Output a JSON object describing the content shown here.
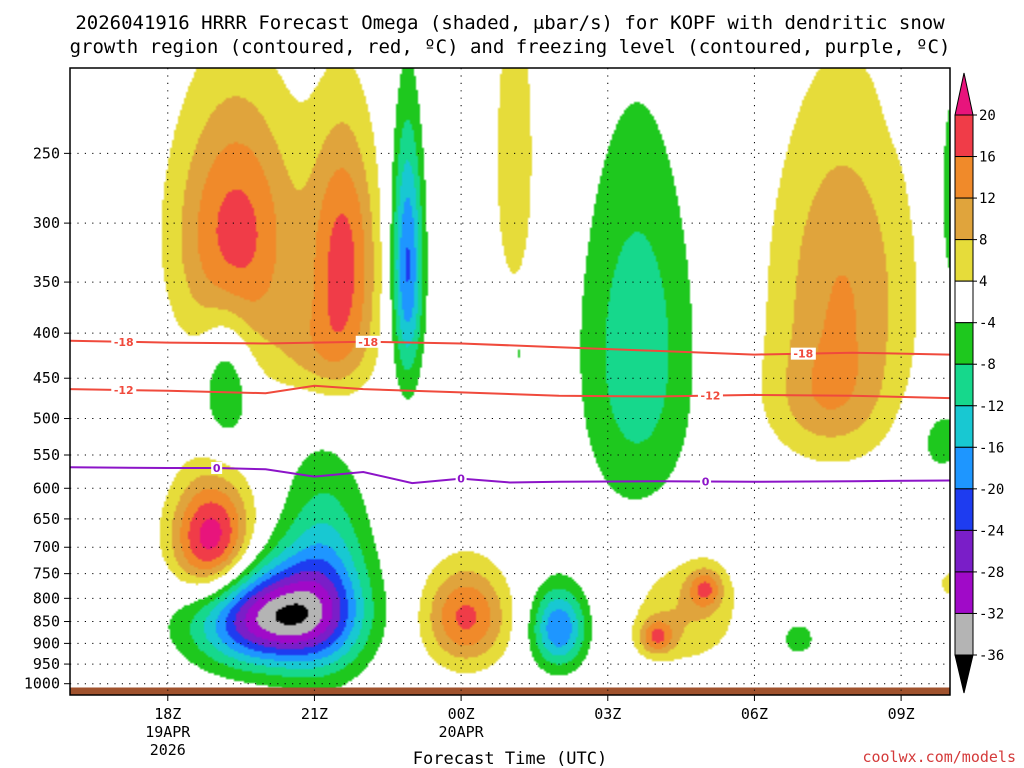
{
  "chart_data": {
    "type": "heatmap",
    "title_line1": "2026041916 HRRR Forecast Omega (shaded, μbar/s) for KOPF with dendritic snow",
    "title_line2": "growth region (contoured, red, ºC) and freezing level (contoured, purple, ºC)",
    "xlabel": "Forecast Time (UTC)",
    "x_ticks": [
      {
        "hour": 18,
        "label": "18Z",
        "date": "19APR",
        "year": "2026"
      },
      {
        "hour": 21,
        "label": "21Z"
      },
      {
        "hour": 24,
        "label": "00Z",
        "date": "20APR"
      },
      {
        "hour": 27,
        "label": "03Z"
      },
      {
        "hour": 30,
        "label": "06Z"
      },
      {
        "hour": 33,
        "label": "09Z"
      }
    ],
    "xlim": [
      16,
      34
    ],
    "y_ticks": [
      250,
      300,
      350,
      400,
      450,
      500,
      550,
      600,
      650,
      700,
      750,
      800,
      850,
      900,
      950,
      1000
    ],
    "ylim_hpa": [
      200,
      1030
    ],
    "ground_level_hpa": 1010,
    "colorbar": {
      "labels": [
        "20",
        "16",
        "12",
        "8",
        "4",
        "-4",
        "-8",
        "-12",
        "-16",
        "-20",
        "-24",
        "-28",
        "-32",
        "-36"
      ],
      "bins": [
        {
          "lo": 16,
          "hi": 20,
          "color": "#f03c48"
        },
        {
          "lo": 12,
          "hi": 16,
          "color": "#f08a2a"
        },
        {
          "lo": 8,
          "hi": 12,
          "color": "#e0a43c"
        },
        {
          "lo": 4,
          "hi": 8,
          "color": "#e6dc3a"
        },
        {
          "lo": -4,
          "hi": 4,
          "color": "#ffffff"
        },
        {
          "lo": -8,
          "hi": -4,
          "color": "#1ec81e"
        },
        {
          "lo": -12,
          "hi": -8,
          "color": "#16d88c"
        },
        {
          "lo": -16,
          "hi": -12,
          "color": "#18c8d2"
        },
        {
          "lo": -20,
          "hi": -16,
          "color": "#1e96ff"
        },
        {
          "lo": -24,
          "hi": -20,
          "color": "#1e3cf0"
        },
        {
          "lo": -28,
          "hi": -24,
          "color": "#7a1ec8"
        },
        {
          "lo": -32,
          "hi": -28,
          "color": "#a00ac8"
        },
        {
          "lo": -36,
          "hi": -32,
          "color": "#b4b4b4"
        }
      ],
      "over_color": "#e8147c",
      "under_color": "#000000"
    },
    "omega_features": [
      {
        "name": "upper-ascent-west",
        "x": 19.4,
        "p": 310,
        "rx": 1.25,
        "ry": 105,
        "peak": 18
      },
      {
        "name": "upper-ascent-west-2",
        "x": 21.6,
        "p": 330,
        "rx": 0.7,
        "ry": 110,
        "peak": 17
      },
      {
        "name": "upper-ascent-south",
        "x": 21.0,
        "p": 420,
        "rx": 1.0,
        "ry": 55,
        "peak": 7
      },
      {
        "name": "upper-descent-column",
        "x": 22.9,
        "p": 335,
        "rx": 0.32,
        "ry": 110,
        "peak": -21
      },
      {
        "name": "upper-ascent-center",
        "x": 25.1,
        "p": 255,
        "rx": 0.55,
        "ry": 140,
        "peak": 6
      },
      {
        "name": "upper-descent-small",
        "x": 19.2,
        "p": 455,
        "rx": 0.5,
        "ry": 80,
        "peak": -10
      },
      {
        "name": "upper-descent-tiny",
        "x": 25.2,
        "p": 420,
        "rx": 0.06,
        "ry": 20,
        "peak": -6
      },
      {
        "name": "mid-descent-right",
        "x": 27.6,
        "p": 420,
        "rx": 1.15,
        "ry": 200,
        "peak": -11
      },
      {
        "name": "upper-ascent-right",
        "x": 31.8,
        "p": 360,
        "rx": 1.45,
        "ry": 160,
        "peak": 12
      },
      {
        "name": "upper-ascent-right-2",
        "x": 31.4,
        "p": 480,
        "rx": 1.2,
        "ry": 70,
        "peak": 6
      },
      {
        "name": "edge-descent-top",
        "x": 33.1,
        "p": 205,
        "rx": 0.3,
        "ry": 25,
        "peak": -6
      },
      {
        "name": "edge-descent-right",
        "x": 34.0,
        "p": 290,
        "rx": 0.35,
        "ry": 130,
        "peak": -6
      },
      {
        "name": "edge-descent-right-2",
        "x": 33.8,
        "p": 530,
        "rx": 0.6,
        "ry": 55,
        "peak": -6
      },
      {
        "name": "lower-ascent-west",
        "x": 18.9,
        "p": 690,
        "rx": 0.82,
        "ry": 110,
        "peak": 24
      },
      {
        "name": "lower-descent-core",
        "x": 20.1,
        "p": 840,
        "rx": 1.5,
        "ry": 110,
        "peak": -33
      },
      {
        "name": "lower-descent-column",
        "x": 21.2,
        "p": 760,
        "rx": 0.9,
        "ry": 200,
        "peak": -14
      },
      {
        "name": "lower-ascent-center",
        "x": 24.1,
        "p": 840,
        "rx": 0.85,
        "ry": 110,
        "peak": 17
      },
      {
        "name": "lower-descent-center",
        "x": 26.0,
        "p": 865,
        "rx": 0.55,
        "ry": 90,
        "peak": -20
      },
      {
        "name": "lower-ascent-right",
        "x": 28.6,
        "p": 830,
        "rx": 1.1,
        "ry": 120,
        "peak": 8
      },
      {
        "name": "lower-ascent-right-2",
        "x": 28.0,
        "p": 885,
        "rx": 0.35,
        "ry": 40,
        "peak": 13
      },
      {
        "name": "lower-ascent-right-3",
        "x": 29.0,
        "p": 780,
        "rx": 0.35,
        "ry": 40,
        "peak": 12
      },
      {
        "name": "lower-descent-right",
        "x": 30.9,
        "p": 890,
        "rx": 0.35,
        "ry": 40,
        "peak": -7
      },
      {
        "name": "edge-ascent-low",
        "x": 34.0,
        "p": 770,
        "rx": 0.25,
        "ry": 30,
        "peak": 6
      }
    ],
    "isotherms": [
      {
        "label": "-18",
        "color": "#f04a3c",
        "labels_at": [
          17.1,
          22.1,
          31.0
        ],
        "x": [
          16,
          18,
          20,
          22,
          24,
          26,
          28,
          30,
          32,
          34
        ],
        "p": [
          408,
          410,
          411,
          409,
          411,
          415,
          419,
          423,
          421,
          423
        ]
      },
      {
        "label": "-12",
        "color": "#f04a3c",
        "labels_at": [
          17.1,
          29.1
        ],
        "x": [
          16,
          18,
          20,
          21,
          22,
          24,
          26,
          28,
          30,
          32,
          34
        ],
        "p": [
          463,
          465,
          468,
          459,
          463,
          467,
          471,
          472,
          470,
          471,
          474
        ]
      },
      {
        "label": "0",
        "color": "#8c14c8",
        "labels_at": [
          19.0,
          24.0,
          29.0
        ],
        "x": [
          16,
          18,
          19,
          20,
          21,
          22,
          23,
          24,
          25,
          26,
          28,
          30,
          32,
          34
        ],
        "p": [
          568,
          569,
          569,
          571,
          582,
          575,
          592,
          585,
          591,
          590,
          589,
          590,
          589,
          588
        ]
      }
    ],
    "credit": "coolwx.com/models"
  }
}
